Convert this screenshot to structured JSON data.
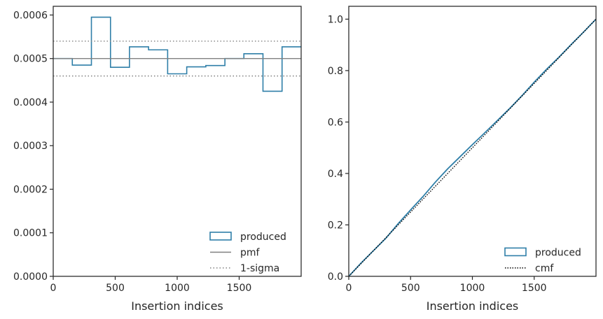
{
  "colors": {
    "produced": "#2f7fa8",
    "pmf": "#808080",
    "sigma": "#808080",
    "cmf": "#000000",
    "axes": "#262626"
  },
  "chart_data": [
    {
      "type": "line",
      "subtype": "step-histogram",
      "xlabel": "Insertion indices",
      "ylabel": "",
      "xlim": [
        0,
        2000
      ],
      "ylim": [
        0,
        0.00062
      ],
      "xticks": [
        0,
        500,
        1000,
        1500
      ],
      "xtick_labels": [
        "0",
        "500",
        "1000",
        "1500"
      ],
      "yticks": [
        0,
        0.0001,
        0.0002,
        0.0003,
        0.0004,
        0.0005,
        0.0006
      ],
      "ytick_labels": [
        "0.0000",
        "0.0001",
        "0.0002",
        "0.0003",
        "0.0004",
        "0.0005",
        "0.0006"
      ],
      "legend_position": "lower-right",
      "legend": [
        "produced",
        "pmf",
        "1-sigma"
      ],
      "series": [
        {
          "name": "produced",
          "kind": "step",
          "bin_edges": [
            0,
            154,
            308,
            462,
            615,
            769,
            923,
            1077,
            1231,
            1385,
            1538,
            1692,
            1846,
            2000
          ],
          "values": [
            0.0005,
            0.000485,
            0.000595,
            0.00048,
            0.000527,
            0.00052,
            0.000465,
            0.000481,
            0.000484,
            0.0005,
            0.000511,
            0.000425,
            0.000527
          ]
        },
        {
          "name": "pmf",
          "kind": "hline",
          "y": 0.0005
        },
        {
          "name": "1-sigma",
          "kind": "hline-pair",
          "y": [
            0.00054,
            0.00046
          ]
        }
      ]
    },
    {
      "type": "line",
      "subtype": "cumulative",
      "xlabel": "Insertion indices",
      "ylabel": "",
      "xlim": [
        0,
        2000
      ],
      "ylim": [
        0,
        1.05
      ],
      "xticks": [
        0,
        500,
        1000,
        1500
      ],
      "xtick_labels": [
        "0",
        "500",
        "1000",
        "1500"
      ],
      "yticks": [
        0,
        0.2,
        0.4,
        0.6,
        0.8,
        1.0
      ],
      "ytick_labels": [
        "0.0",
        "0.2",
        "0.4",
        "0.6",
        "0.8",
        "1.0"
      ],
      "legend_position": "lower-right",
      "legend": [
        "produced",
        "cmf"
      ],
      "series": [
        {
          "name": "produced",
          "kind": "line",
          "x": [
            0,
            100,
            200,
            300,
            400,
            500,
            600,
            700,
            800,
            900,
            1000,
            1100,
            1200,
            1300,
            1400,
            1500,
            1600,
            1700,
            1800,
            1900,
            2000
          ],
          "y": [
            0,
            0.052,
            0.1,
            0.148,
            0.205,
            0.258,
            0.31,
            0.366,
            0.418,
            0.465,
            0.512,
            0.558,
            0.605,
            0.652,
            0.702,
            0.755,
            0.805,
            0.852,
            0.902,
            0.95,
            1.0
          ]
        },
        {
          "name": "cmf",
          "kind": "line",
          "x": [
            0,
            2000
          ],
          "y": [
            0,
            1.0
          ]
        }
      ]
    }
  ]
}
